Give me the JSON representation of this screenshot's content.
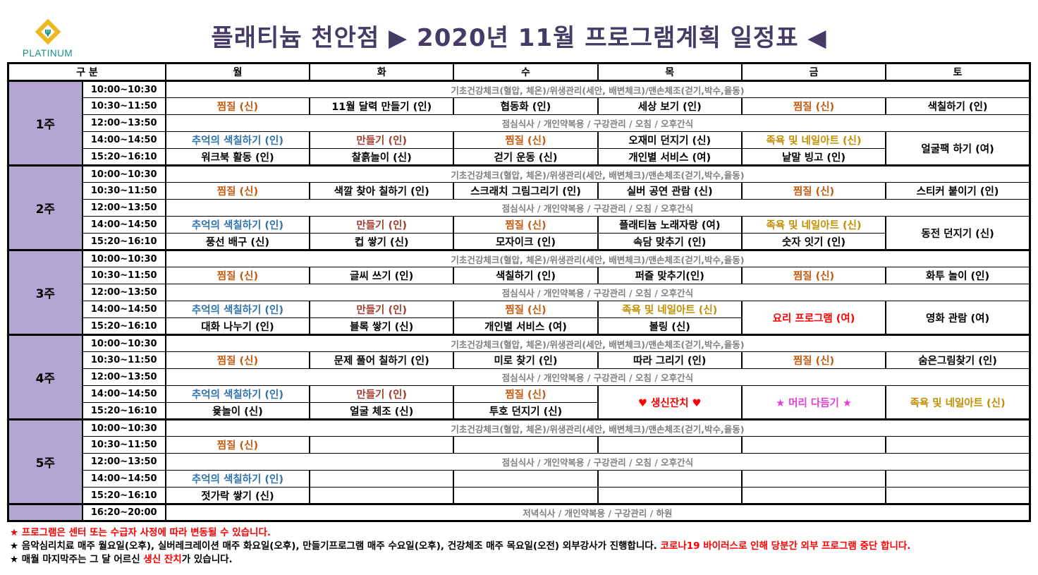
{
  "logo": {
    "brand": "PLATINUM",
    "icon": "diamond-person"
  },
  "title": "플래티늄 천안점  ▶ 2020년 11월  프로그램계획 일정표 ◀",
  "palette": {
    "title": "#463A66",
    "ink": "#000000",
    "gray": "#7F7F7F",
    "orange": "#C55A11",
    "blue": "#2E74B5",
    "brick": "#A33E2B",
    "olive": "#BF8F00",
    "red": "#FF0000",
    "magenta": "#E53BD8",
    "week_bg": "#B3A6D0",
    "logo_gold": "#EDB81F",
    "logo_teal": "#179080"
  },
  "table": {
    "header": [
      "구 분",
      "월",
      "화",
      "수",
      "목",
      "금",
      "토"
    ],
    "times": [
      "10:00~10:30",
      "10:30~11:50",
      "12:00~13:50",
      "14:00~14:50",
      "15:20~16:10"
    ],
    "evening_time": "16:20~20:00",
    "span_texts": {
      "morning": "기초건강체크(혈압, 체온)/위생관리(세안, 배변체크)/맨손체조(걷기,박수,율동)",
      "lunch": "점심식사 / 개인약복용 / 구강관리 / 오침 / 오후간식",
      "evening": "저녁식사 / 개인약복용 / 구강관리 / 하원"
    },
    "weeks": [
      {
        "label": "1주",
        "am": [
          {
            "text": "찜질 (신)",
            "color": "orange"
          },
          {
            "text": "11월 달력 만들기 (인)"
          },
          {
            "text": "협동화 (인)"
          },
          {
            "text": "세상 보기 (인)"
          },
          {
            "text": "찜질 (신)",
            "color": "orange"
          },
          {
            "text": "색칠하기 (인)"
          }
        ],
        "pm1": [
          {
            "text": "추억의 색칠하기 (인)",
            "color": "blue"
          },
          {
            "text": "만들기 (인)",
            "color": "brick"
          },
          {
            "text": "찜질 (신)",
            "color": "orange"
          },
          {
            "text": "오재미 던지기 (신)"
          },
          {
            "text": "족욕 및 네일아트 (신)",
            "color": "olive"
          },
          {
            "text": "얼굴팩 하기 (여)",
            "rowspan": 2
          }
        ],
        "pm2": [
          {
            "text": "워크북 활동 (인)"
          },
          {
            "text": "찰흙놀이 (신)"
          },
          {
            "text": "걷기 운동 (신)"
          },
          {
            "text": "개인별 서비스 (여)"
          },
          {
            "text": "낱말 빙고 (인)"
          },
          null
        ]
      },
      {
        "label": "2주",
        "am": [
          {
            "text": "찜질 (신)",
            "color": "orange"
          },
          {
            "text": "색깔 찾아 칠하기 (인)"
          },
          {
            "text": "스크래치 그림그리기 (인)"
          },
          {
            "text": "실버 공연 관람 (신)"
          },
          {
            "text": "찜질 (신)",
            "color": "orange"
          },
          {
            "text": "스티커 붙이기 (인)"
          }
        ],
        "pm1": [
          {
            "text": "추억의 색칠하기 (인)",
            "color": "blue"
          },
          {
            "text": "만들기 (인)",
            "color": "brick"
          },
          {
            "text": "찜질 (신)",
            "color": "orange"
          },
          {
            "text": "플래티늄 노래자랑 (여)"
          },
          {
            "text": "족욕 및 네일아트 (신)",
            "color": "olive"
          },
          {
            "text": "동전 던지기 (신)",
            "rowspan": 2
          }
        ],
        "pm2": [
          {
            "text": "풍선 배구 (신)"
          },
          {
            "text": "컵 쌓기 (신)"
          },
          {
            "text": "모자이크 (인)"
          },
          {
            "text": "속담 맞추기 (인)"
          },
          {
            "text": "숫자 잇기 (인)"
          },
          null
        ]
      },
      {
        "label": "3주",
        "am": [
          {
            "text": "찜질 (신)",
            "color": "orange"
          },
          {
            "text": "글씨 쓰기 (인)"
          },
          {
            "text": "색칠하기 (인)"
          },
          {
            "text": "퍼즐 맞추기(인)"
          },
          {
            "text": "찜질 (신)",
            "color": "orange"
          },
          {
            "text": "화투 놀이 (인)"
          }
        ],
        "pm1": [
          {
            "text": "추억의 색칠하기 (인)",
            "color": "blue"
          },
          {
            "text": "만들기 (인)",
            "color": "brick"
          },
          {
            "text": "찜질 (신)",
            "color": "orange"
          },
          {
            "text": "족욕 및 네일아트 (신)",
            "color": "olive"
          },
          {
            "text": "요리 프로그램 (여)",
            "color": "red",
            "rowspan": 2
          },
          {
            "text": "영화 관람 (여)",
            "rowspan": 2
          }
        ],
        "pm2": [
          {
            "text": "대화 나누기 (인)"
          },
          {
            "text": "블록 쌓기 (신)"
          },
          {
            "text": "개인별 서비스 (여)"
          },
          {
            "text": "볼링 (신)"
          },
          null,
          null
        ]
      },
      {
        "label": "4주",
        "am": [
          {
            "text": "찜질 (신)",
            "color": "orange"
          },
          {
            "text": "문제 풀어 칠하기 (인)"
          },
          {
            "text": "미로 찾기 (인)"
          },
          {
            "text": "따라 그리기 (인)"
          },
          {
            "text": "찜질 (신)",
            "color": "orange"
          },
          {
            "text": "숨은그림찾기 (인)"
          }
        ],
        "pm1": [
          {
            "text": "추억의 색칠하기 (인)",
            "color": "blue"
          },
          {
            "text": "만들기 (인)",
            "color": "brick"
          },
          {
            "text": "찜질 (신)",
            "color": "orange"
          },
          {
            "text": "♥ 생신잔치 ♥",
            "color": "red",
            "rowspan": 2
          },
          {
            "text": "★ 머리 다듬기 ★",
            "color": "magenta",
            "rowspan": 2
          },
          {
            "text": "족욕 및 네일아트 (신)",
            "color": "olive",
            "rowspan": 2
          }
        ],
        "pm2": [
          {
            "text": "윷놀이 (신)"
          },
          {
            "text": "얼굴 체조 (신)"
          },
          {
            "text": "투호 던지기 (신)"
          },
          null,
          null,
          null
        ]
      },
      {
        "label": "5주",
        "am": [
          {
            "text": "찜질 (신)",
            "color": "orange"
          },
          {
            "text": ""
          },
          {
            "text": ""
          },
          {
            "text": ""
          },
          {
            "text": ""
          },
          {
            "text": ""
          }
        ],
        "pm1": [
          {
            "text": "추억의 색칠하기 (인)",
            "color": "blue"
          },
          {
            "text": ""
          },
          {
            "text": ""
          },
          {
            "text": ""
          },
          {
            "text": ""
          },
          {
            "text": ""
          }
        ],
        "pm2": [
          {
            "text": "젓가락 쌓기 (신)"
          },
          {
            "text": ""
          },
          {
            "text": ""
          },
          {
            "text": ""
          },
          {
            "text": ""
          },
          {
            "text": ""
          }
        ]
      }
    ]
  },
  "footer": {
    "notes": [
      {
        "parts": [
          {
            "text": "★ 프로그램은 센터 또는 수급자 사정에 따라 변동될 수 있습니다.",
            "color": "red"
          }
        ]
      },
      {
        "parts": [
          {
            "text": "★ 음악심리치료 매주 월요일(오후), 실버레크레이션 매주 화요일(오후), 만들기프로그램 매주 수요일(오후), 건강체조 매주 목요일(오전) 외부강사가 진행합니다. ",
            "color": "ink"
          },
          {
            "text": "코로나19 바이러스로 인해 당분간 외부 프로그램 중단 합니다.",
            "color": "red"
          }
        ]
      },
      {
        "parts": [
          {
            "text": "★ 매월 마지막주는 그 달 어르신 ",
            "color": "ink"
          },
          {
            "text": "생신 잔치",
            "color": "red"
          },
          {
            "text": "가 있습니다.",
            "color": "ink"
          }
        ]
      }
    ]
  }
}
